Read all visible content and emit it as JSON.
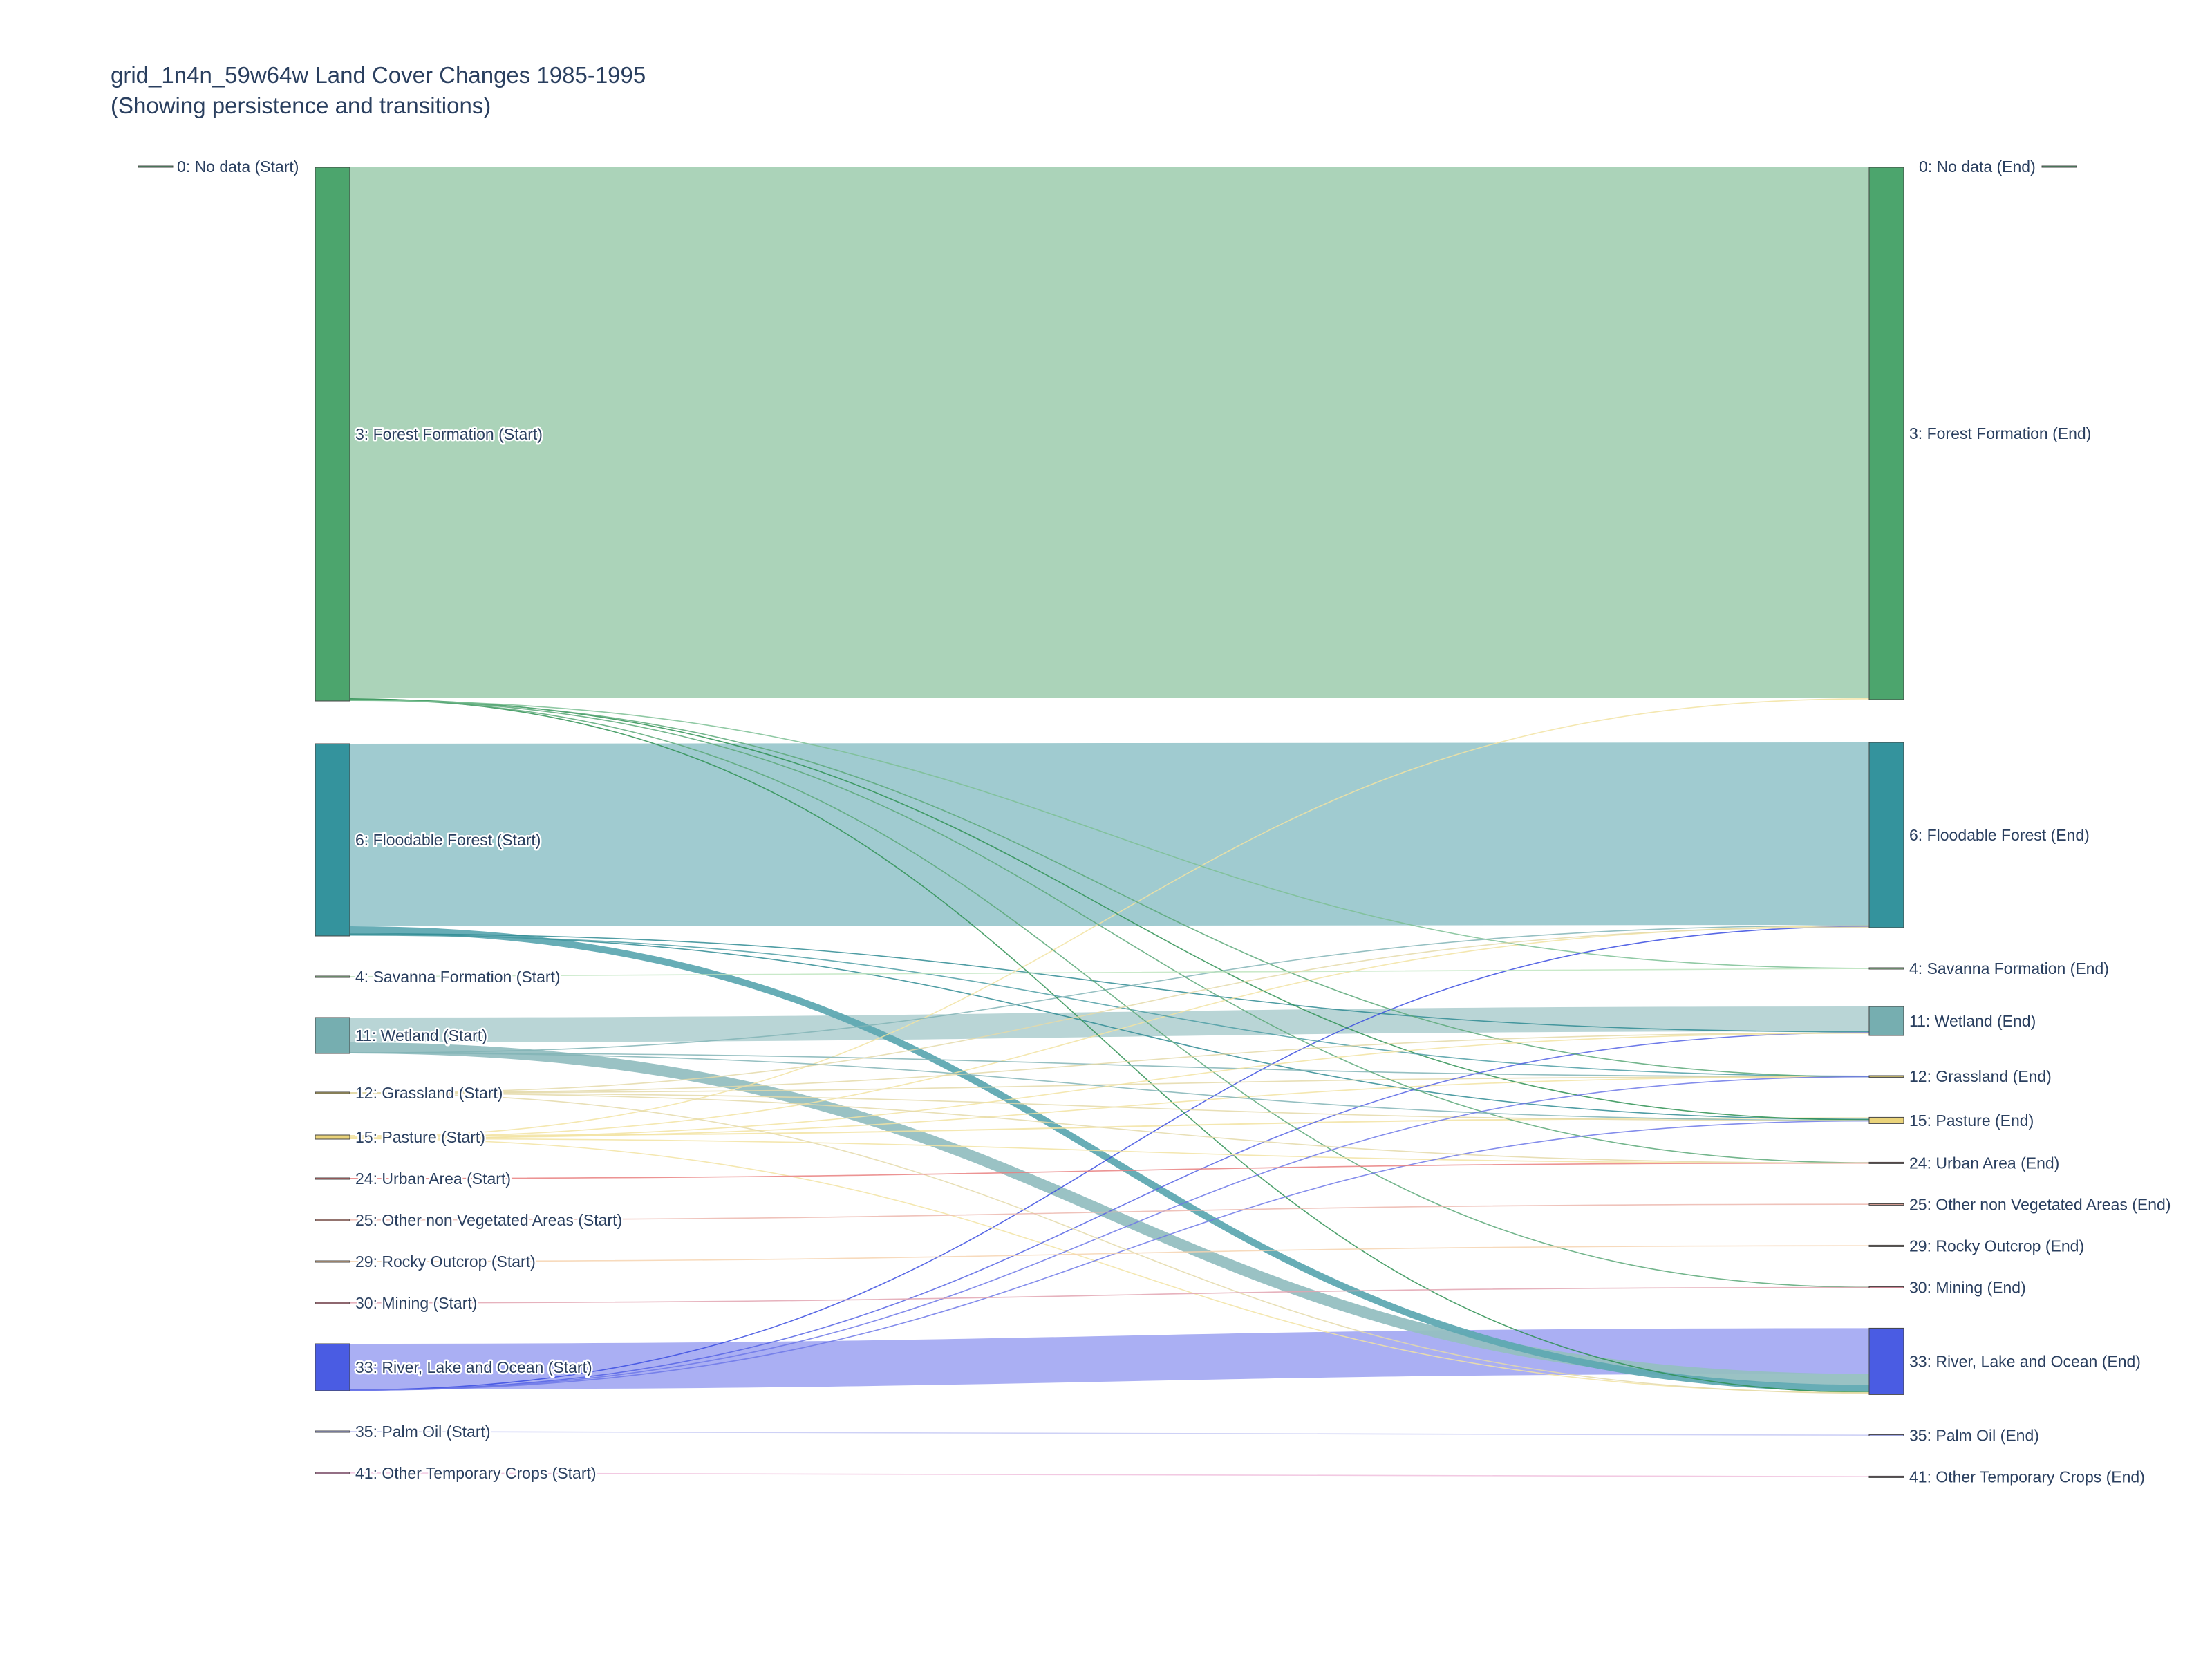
{
  "chart_data": {
    "type": "sankey",
    "title": "grid_1n4n_59w64w Land Cover Changes 1985-1995",
    "subtitle": "(Showing persistence and transitions)",
    "nodes": [
      {
        "id": "s0",
        "label": "0: No data (Start)",
        "column": "start",
        "value": 0,
        "color": "#4ca56d"
      },
      {
        "id": "s3",
        "label": "3: Forest Formation (Start)",
        "column": "start",
        "value": 38600,
        "color": "#4ca56d"
      },
      {
        "id": "s6",
        "label": "6: Floodable Forest (Start)",
        "column": "start",
        "value": 13900,
        "color": "#34939d"
      },
      {
        "id": "s4",
        "label": "4: Savanna Formation (Start)",
        "column": "start",
        "value": 20,
        "color": "#8fd08f"
      },
      {
        "id": "s11",
        "label": "11: Wetland (Start)",
        "column": "start",
        "value": 2600,
        "color": "#76aeb0"
      },
      {
        "id": "s12",
        "label": "12: Grassland (Start)",
        "column": "start",
        "value": 100,
        "color": "#c8b96a"
      },
      {
        "id": "s15",
        "label": "15: Pasture (Start)",
        "column": "start",
        "value": 300,
        "color": "#ead37a"
      },
      {
        "id": "s24",
        "label": "24: Urban Area (Start)",
        "column": "start",
        "value": 10,
        "color": "#e06a6a"
      },
      {
        "id": "s25",
        "label": "25: Other non Vegetated Areas (Start)",
        "column": "start",
        "value": 10,
        "color": "#e3a59a"
      },
      {
        "id": "s29",
        "label": "29: Rocky Outcrop (Start)",
        "column": "start",
        "value": 10,
        "color": "#f0c090"
      },
      {
        "id": "s30",
        "label": "30: Mining (Start)",
        "column": "start",
        "value": 10,
        "color": "#d98a9a"
      },
      {
        "id": "s33",
        "label": "33: River, Lake and Ocean (Start)",
        "column": "start",
        "value": 3400,
        "color": "#4a5ce3"
      },
      {
        "id": "s35",
        "label": "35: Palm Oil (Start)",
        "column": "start",
        "value": 5,
        "color": "#a9b0ee"
      },
      {
        "id": "s41",
        "label": "41: Other Temporary Crops (Start)",
        "column": "start",
        "value": 5,
        "color": "#e59ac6"
      },
      {
        "id": "e0",
        "label": "0: No data (End)",
        "column": "end",
        "value": 0,
        "color": "#4ca56d"
      },
      {
        "id": "e3",
        "label": "3: Forest Formation (End)",
        "column": "end",
        "value": 38500,
        "color": "#4ca56d"
      },
      {
        "id": "e6",
        "label": "6: Floodable Forest (End)",
        "column": "end",
        "value": 13400,
        "color": "#34939d"
      },
      {
        "id": "e4",
        "label": "4: Savanna Formation (End)",
        "column": "end",
        "value": 20,
        "color": "#8fd08f"
      },
      {
        "id": "e11",
        "label": "11: Wetland (End)",
        "column": "end",
        "value": 2100,
        "color": "#76aeb0"
      },
      {
        "id": "e12",
        "label": "12: Grassland (End)",
        "column": "end",
        "value": 120,
        "color": "#c8b96a"
      },
      {
        "id": "e15",
        "label": "15: Pasture (End)",
        "column": "end",
        "value": 450,
        "color": "#ead37a"
      },
      {
        "id": "e24",
        "label": "24: Urban Area (End)",
        "column": "end",
        "value": 40,
        "color": "#e06a6a"
      },
      {
        "id": "e25",
        "label": "25: Other non Vegetated Areas (End)",
        "column": "end",
        "value": 10,
        "color": "#e3a59a"
      },
      {
        "id": "e29",
        "label": "29: Rocky Outcrop (End)",
        "column": "end",
        "value": 10,
        "color": "#f0c090"
      },
      {
        "id": "e30",
        "label": "30: Mining (End)",
        "column": "end",
        "value": 40,
        "color": "#d98a9a"
      },
      {
        "id": "e33",
        "label": "33: River, Lake and Ocean (End)",
        "column": "end",
        "value": 4800,
        "color": "#4a5ce3"
      },
      {
        "id": "e35",
        "label": "35: Palm Oil (End)",
        "column": "end",
        "value": 5,
        "color": "#a9b0ee"
      },
      {
        "id": "e41",
        "label": "41: Other Temporary Crops (End)",
        "column": "end",
        "value": 5,
        "color": "#e59ac6"
      }
    ],
    "links": [
      {
        "source": "s3",
        "target": "e3",
        "value": 38400,
        "color": "#a7d1b5"
      },
      {
        "source": "s3",
        "target": "e33",
        "value": 30,
        "color": "#2e9052"
      },
      {
        "source": "s3",
        "target": "e30",
        "value": 20,
        "color": "#5aa878"
      },
      {
        "source": "s3",
        "target": "e24",
        "value": 20,
        "color": "#5aa878"
      },
      {
        "source": "s3",
        "target": "e15",
        "value": 30,
        "color": "#2e9052"
      },
      {
        "source": "s3",
        "target": "e12",
        "value": 20,
        "color": "#5aa878"
      },
      {
        "source": "s3",
        "target": "e4",
        "value": 10,
        "color": "#7cbf94"
      },
      {
        "source": "s6",
        "target": "e6",
        "value": 13200,
        "color": "#9bc8ce"
      },
      {
        "source": "s6",
        "target": "e33",
        "value": 500,
        "color": "#5fa9b2"
      },
      {
        "source": "s6",
        "target": "e11",
        "value": 50,
        "color": "#2f8b93"
      },
      {
        "source": "s6",
        "target": "e15",
        "value": 50,
        "color": "#2f8b93"
      },
      {
        "source": "s6",
        "target": "e12",
        "value": 30,
        "color": "#4d9ea5"
      },
      {
        "source": "s4",
        "target": "e4",
        "value": 10,
        "color": "#bfe5bf"
      },
      {
        "source": "s11",
        "target": "e11",
        "value": 1800,
        "color": "#b5d3d4"
      },
      {
        "source": "s11",
        "target": "e33",
        "value": 800,
        "color": "#95bfc1"
      },
      {
        "source": "s11",
        "target": "e6",
        "value": 40,
        "color": "#82b4b6"
      },
      {
        "source": "s11",
        "target": "e12",
        "value": 30,
        "color": "#82b4b6"
      },
      {
        "source": "s11",
        "target": "e15",
        "value": 20,
        "color": "#82b4b6"
      },
      {
        "source": "s12",
        "target": "e12",
        "value": 30,
        "color": "#e4d9a9"
      },
      {
        "source": "s12",
        "target": "e11",
        "value": 20,
        "color": "#e4d9a9"
      },
      {
        "source": "s12",
        "target": "e15",
        "value": 20,
        "color": "#e4d9a9"
      },
      {
        "source": "s12",
        "target": "e24",
        "value": 10,
        "color": "#e4d9a9"
      },
      {
        "source": "s12",
        "target": "e33",
        "value": 10,
        "color": "#e4d9a9"
      },
      {
        "source": "s12",
        "target": "e6",
        "value": 10,
        "color": "#e4d9a9"
      },
      {
        "source": "s15",
        "target": "e3",
        "value": 50,
        "color": "#f2e3a2"
      },
      {
        "source": "s15",
        "target": "e6",
        "value": 40,
        "color": "#f2e3a2"
      },
      {
        "source": "s15",
        "target": "e15",
        "value": 100,
        "color": "#f2e3a2"
      },
      {
        "source": "s15",
        "target": "e12",
        "value": 30,
        "color": "#f2e3a2"
      },
      {
        "source": "s15",
        "target": "e11",
        "value": 20,
        "color": "#f2e3a2"
      },
      {
        "source": "s15",
        "target": "e24",
        "value": 20,
        "color": "#f2e3a2"
      },
      {
        "source": "s15",
        "target": "e33",
        "value": 30,
        "color": "#f2e3a2"
      },
      {
        "source": "s24",
        "target": "e24",
        "value": 10,
        "color": "#e98080"
      },
      {
        "source": "s25",
        "target": "e25",
        "value": 10,
        "color": "#ecb7ae"
      },
      {
        "source": "s29",
        "target": "e29",
        "value": 10,
        "color": "#f6d3b0"
      },
      {
        "source": "s30",
        "target": "e30",
        "value": 10,
        "color": "#e2a4b1"
      },
      {
        "source": "s33",
        "target": "e33",
        "value": 3300,
        "color": "#a5abf2"
      },
      {
        "source": "s33",
        "target": "e6",
        "value": 40,
        "color": "#3a4ce0"
      },
      {
        "source": "s33",
        "target": "e11",
        "value": 30,
        "color": "#5563e4"
      },
      {
        "source": "s33",
        "target": "e12",
        "value": 20,
        "color": "#6d78e7"
      },
      {
        "source": "s33",
        "target": "e15",
        "value": 20,
        "color": "#6d78e7"
      },
      {
        "source": "s35",
        "target": "e35",
        "value": 5,
        "color": "#c5c9f5"
      },
      {
        "source": "s41",
        "target": "e41",
        "value": 5,
        "color": "#f0c0dd"
      }
    ]
  }
}
